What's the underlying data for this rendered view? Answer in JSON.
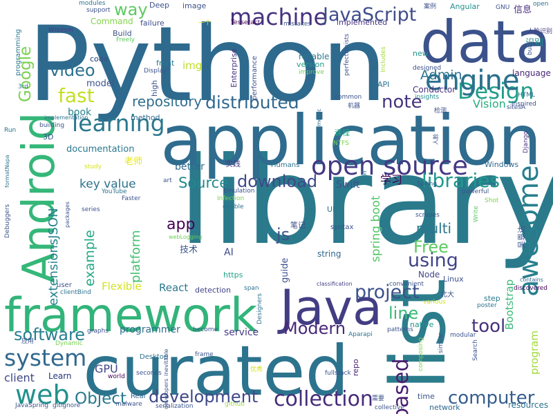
{
  "cloud": {
    "words": [
      {
        "text": "library",
        "color": "#2a7a8c"
      },
      {
        "text": "Python",
        "color": "#2e6a8e"
      },
      {
        "text": "application",
        "color": "#2f6c8e"
      },
      {
        "text": "curated",
        "color": "#2c738e"
      },
      {
        "text": "list",
        "color": "#2c7d8c"
      },
      {
        "text": "framework",
        "color": "#32b47a"
      },
      {
        "text": "data",
        "color": "#3b528b"
      },
      {
        "text": "Java",
        "color": "#433d84"
      },
      {
        "text": "Android",
        "color": "#35b779"
      },
      {
        "text": "open source",
        "color": "#443983"
      },
      {
        "text": "engine",
        "color": "#2d708e"
      },
      {
        "text": "machine",
        "color": "#46327e"
      },
      {
        "text": "JavaScript",
        "color": "#3e4c8a"
      },
      {
        "text": "Design",
        "color": "#1f9e89"
      },
      {
        "text": "awesome",
        "color": "#277f8e"
      },
      {
        "text": "learning",
        "color": "#2a788e"
      },
      {
        "text": "system",
        "color": "#31688e"
      },
      {
        "text": "software",
        "color": "#277f8e"
      },
      {
        "text": "web",
        "color": "#21918c"
      },
      {
        "text": "collection",
        "color": "#472c7a"
      },
      {
        "text": "development",
        "color": "#3f4889"
      },
      {
        "text": "computer",
        "color": "#365d8d"
      },
      {
        "text": "Modern",
        "color": "#482979"
      },
      {
        "text": "project",
        "color": "#3b528b"
      },
      {
        "text": "distributed",
        "color": "#31688e"
      },
      {
        "text": "video",
        "color": "#2d708e"
      },
      {
        "text": "download",
        "color": "#3e4a89"
      },
      {
        "text": "libraries",
        "color": "#1f988b"
      },
      {
        "text": "repository",
        "color": "#2e6e8e"
      },
      {
        "text": "way",
        "color": "#5ec962"
      },
      {
        "text": "fast",
        "color": "#c2df23"
      },
      {
        "text": "note",
        "color": "#46337f"
      },
      {
        "text": "tool",
        "color": "#46307e"
      },
      {
        "text": "line",
        "color": "#3aba76"
      },
      {
        "text": "Object",
        "color": "#29798e"
      },
      {
        "text": "based",
        "color": "#481f70"
      },
      {
        "text": "using",
        "color": "#414487"
      },
      {
        "text": "Google",
        "color": "#7ad151"
      },
      {
        "text": "Free",
        "color": "#5ec962"
      },
      {
        "text": "app",
        "color": "#440154"
      },
      {
        "text": "js",
        "color": "#3b528b"
      },
      {
        "text": "Source",
        "color": "#23888e"
      },
      {
        "text": "key value",
        "color": "#2c728e"
      },
      {
        "text": "example",
        "color": "#22a884"
      },
      {
        "text": "platform",
        "color": "#44bf70"
      },
      {
        "text": "extensionsJSON",
        "color": "#26828e"
      },
      {
        "text": "multi",
        "color": "#2a768e"
      },
      {
        "text": "engine",
        "color": "#2d708e"
      },
      {
        "text": "Admin",
        "color": "#2b748e"
      },
      {
        "text": "img",
        "color": "#bddf26"
      },
      {
        "text": "Bootstrap",
        "color": "#38b977"
      },
      {
        "text": "spring boot",
        "color": "#54c568"
      },
      {
        "text": "Flexible",
        "color": "#d2e21b"
      },
      {
        "text": "React",
        "color": "#2a778e"
      },
      {
        "text": "client",
        "color": "#3f4788"
      },
      {
        "text": "GPU",
        "color": "#414487"
      },
      {
        "text": "Learn",
        "color": "#3d4e8a"
      },
      {
        "text": "Swift",
        "color": "#3b528b"
      },
      {
        "text": "book",
        "color": "#26828e"
      },
      {
        "text": "better",
        "color": "#31688e"
      },
      {
        "text": "Vision",
        "color": "#27ad81"
      },
      {
        "text": "program",
        "color": "#a0da39"
      },
      {
        "text": "programmer",
        "color": "#2e6f8e"
      },
      {
        "text": "service",
        "color": "#443983"
      },
      {
        "text": "documentation",
        "color": "#2a788e"
      },
      {
        "text": "model",
        "color": "#3a538b"
      },
      {
        "text": "code",
        "color": "#31688e"
      },
      {
        "text": "Deep",
        "color": "#3b528b"
      },
      {
        "text": "Command",
        "color": "#84d44b"
      },
      {
        "text": "failure",
        "color": "#3e4c8a"
      },
      {
        "text": "Build",
        "color": "#3b528b"
      },
      {
        "text": "implemented",
        "color": "#46327e"
      },
      {
        "text": "reliable",
        "color": "#2a788e"
      },
      {
        "text": "version",
        "color": "#1f9a8a"
      },
      {
        "text": "Conductor",
        "color": "#46327e"
      },
      {
        "text": "API",
        "color": "#2c718e"
      },
      {
        "text": "language",
        "color": "#482677"
      },
      {
        "text": "Angular",
        "color": "#21918c"
      },
      {
        "text": "信息",
        "color": "#472d7b"
      },
      {
        "text": "识别",
        "color": "#21918c"
      },
      {
        "text": "学习",
        "color": "#440154"
      },
      {
        "text": "技术",
        "color": "#3b528b"
      },
      {
        "text": "实践",
        "color": "#433e85"
      },
      {
        "text": "老师",
        "color": "#e5e419"
      },
      {
        "text": "课程",
        "color": "#22a884"
      },
      {
        "text": "笔记",
        "color": "#3e4a89"
      },
      {
        "text": "AI",
        "color": "#3e4989"
      },
      {
        "text": "https",
        "color": "#20a386"
      },
      {
        "text": "guide",
        "color": "#3b528b"
      },
      {
        "text": "string",
        "color": "#31688e"
      },
      {
        "text": "syntax",
        "color": "#3b528b"
      },
      {
        "text": "Node",
        "color": "#414487"
      },
      {
        "text": "Linux",
        "color": "#3b528b"
      },
      {
        "text": "Enterprise",
        "color": "#46327e"
      },
      {
        "text": "performance",
        "color": "#3b528b"
      },
      {
        "text": "perfectionists",
        "color": "#3b528b"
      },
      {
        "text": "Tesseract",
        "color": "#440154"
      },
      {
        "text": "programming",
        "color": "#2a788e"
      },
      {
        "text": "Windows",
        "color": "#31688e"
      },
      {
        "text": "Humans",
        "color": "#2c728e"
      },
      {
        "text": "3D",
        "color": "#3b528b"
      },
      {
        "text": "detection",
        "color": "#414487"
      },
      {
        "text": "Desktop",
        "color": "#2c728e"
      },
      {
        "text": "Real",
        "color": "#31688e"
      },
      {
        "text": "user",
        "color": "#3b528b"
      },
      {
        "text": "native",
        "color": "#21918c"
      },
      {
        "text": "step",
        "color": "#2a788e"
      },
      {
        "text": "repo",
        "color": "#481f70"
      },
      {
        "text": "Designers",
        "color": "#2c728e"
      },
      {
        "text": "fullstack",
        "color": "#3b528b"
      },
      {
        "text": "resources",
        "color": "#2c728e"
      },
      {
        "text": "time",
        "color": "#3b528b"
      },
      {
        "text": "network",
        "color": "#31688e"
      },
      {
        "text": "world",
        "color": "#440154"
      },
      {
        "text": "patterns",
        "color": "#3b528b"
      },
      {
        "text": "insights",
        "color": "#21918c"
      },
      {
        "text": "classification",
        "color": "#433e85"
      },
      {
        "text": "convenient",
        "color": "#3b528b"
      },
      {
        "text": "contains",
        "color": "#31688e"
      },
      {
        "text": "discovered",
        "color": "#440154"
      },
      {
        "text": "Django",
        "color": "#46327e"
      },
      {
        "text": "HTML",
        "color": "#2c728e"
      },
      {
        "text": "Display",
        "color": "#3b528b"
      },
      {
        "text": "front",
        "color": "#2a788e"
      },
      {
        "text": "high",
        "color": "#3b528b"
      },
      {
        "text": "method",
        "color": "#31688e"
      },
      {
        "text": "implementation",
        "color": "#2c728e"
      },
      {
        "text": "building",
        "color": "#3b528b"
      },
      {
        "text": "3rd",
        "color": "#2a788e"
      },
      {
        "text": "Freely",
        "color": "#5ec962"
      },
      {
        "text": "Wisdom",
        "color": "#433e85"
      },
      {
        "text": "modules",
        "color": "#2c728e"
      },
      {
        "text": "support",
        "color": "#3b528b"
      },
      {
        "text": "image",
        "color": "#3b528b"
      },
      {
        "text": "mistakes",
        "color": "#3b528b"
      },
      {
        "text": "common",
        "color": "#3b528b"
      },
      {
        "text": "geometric",
        "color": "#2c728e"
      },
      {
        "text": "Includes",
        "color": "#a0da39"
      },
      {
        "text": "improve",
        "color": "#6ece58"
      },
      {
        "text": "designed",
        "color": "#3b528b"
      },
      {
        "text": "new",
        "color": "#21918c"
      },
      {
        "text": "built",
        "color": "#3b528b"
      },
      {
        "text": "inspired",
        "color": "#3b528b"
      },
      {
        "text": "sitesA",
        "color": "#3b528b"
      },
      {
        "text": "open",
        "color": "#2c728e"
      },
      {
        "text": "GNU",
        "color": "#3b528b"
      },
      {
        "text": "人脸识别",
        "color": "#433e85"
      },
      {
        "text": "案例",
        "color": "#3b528b"
      },
      {
        "text": "一个",
        "color": "#e5e419"
      },
      {
        "text": "机器",
        "color": "#3b528b"
      },
      {
        "text": "检测",
        "color": "#3b528b"
      },
      {
        "text": "人脸",
        "color": "#3b528b"
      },
      {
        "text": "NTFS",
        "color": "#7ad151"
      },
      {
        "text": "Spring",
        "color": "#3b528b"
      },
      {
        "text": "一封",
        "color": "#2c728e"
      },
      {
        "text": "study",
        "color": "#d2e21b"
      },
      {
        "text": "YouTube",
        "color": "#2c728e"
      },
      {
        "text": "Faster",
        "color": "#3b528b"
      },
      {
        "text": "art",
        "color": "#3b528b"
      },
      {
        "text": "Emulation",
        "color": "#3b528b"
      },
      {
        "text": "Infection",
        "color": "#7ad151"
      },
      {
        "text": "enable",
        "color": "#2c728e"
      },
      {
        "text": "webLogging",
        "color": "#6ece58"
      },
      {
        "text": "series",
        "color": "#3b528b"
      },
      {
        "text": "packages",
        "color": "#3b528b"
      },
      {
        "text": "Debuggers",
        "color": "#3b528b"
      },
      {
        "text": "formatNapa",
        "color": "#2c728e"
      },
      {
        "text": "Run",
        "color": "#2c728e"
      },
      {
        "text": "clientBind",
        "color": "#2c728e"
      },
      {
        "text": "graphs",
        "color": "#3b528b"
      },
      {
        "text": "Dynamic",
        "color": "#7ad151"
      },
      {
        "text": "应用",
        "color": "#3b528b"
      },
      {
        "text": "JavaSpring",
        "color": "#3b528b"
      },
      {
        "text": "gitignore",
        "color": "#3b528b"
      },
      {
        "text": "malware",
        "color": "#3b528b"
      },
      {
        "text": "serialization",
        "color": "#3b528b"
      },
      {
        "text": "github",
        "color": "#a0da39"
      },
      {
        "text": "seconds",
        "color": "#3b528b"
      },
      {
        "text": "inevitable",
        "color": "#3b528b"
      },
      {
        "text": "developers",
        "color": "#3b528b"
      },
      {
        "text": "frame",
        "color": "#3b528b"
      },
      {
        "text": "become",
        "color": "#3b528b"
      },
      {
        "text": "优秀",
        "color": "#d2e21b"
      },
      {
        "text": "需要",
        "color": "#3b528b"
      },
      {
        "text": "collective",
        "color": "#3b528b"
      },
      {
        "text": "composing",
        "color": "#7ad151"
      },
      {
        "text": "similar",
        "color": "#3b528b"
      },
      {
        "text": "various",
        "color": "#d2e21b"
      },
      {
        "text": "modular",
        "color": "#3b528b"
      },
      {
        "text": "poster",
        "color": "#2c728e"
      },
      {
        "text": "Search",
        "color": "#3b528b"
      },
      {
        "text": "Aparapi",
        "color": "#2c728e"
      },
      {
        "text": "Write",
        "color": "#5ec962"
      },
      {
        "text": "Shot",
        "color": "#7ad151"
      },
      {
        "text": "powerful",
        "color": "#3b528b"
      },
      {
        "text": "UI",
        "color": "#2c728e"
      },
      {
        "text": "scrapes",
        "color": "#3b528b"
      },
      {
        "text": "北大",
        "color": "#3b528b"
      },
      {
        "text": "吴恩达",
        "color": "#3b528b"
      },
      {
        "text": "span",
        "color": "#2c728e"
      },
      {
        "text": "Learn",
        "color": "#3d4e8a"
      },
      {
        "text": "code",
        "color": "#3b528b"
      }
    ]
  }
}
